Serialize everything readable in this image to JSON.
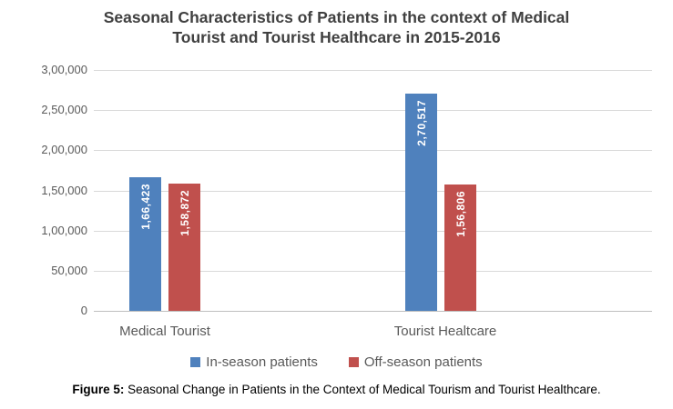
{
  "title": {
    "line1": "Seasonal Characteristics of Patients in the context of Medical",
    "line2": "Tourist and Tourist Healthcare in 2015-2016"
  },
  "chart_data": {
    "type": "bar",
    "title": "Seasonal Characteristics of Patients in the context of Medical Tourist and Tourist Healthcare in 2015-2016",
    "categories": [
      "Medical Tourist",
      "Tourist Healtcare"
    ],
    "series": [
      {
        "name": "In-season patients",
        "color": "#4F81BD",
        "values": [
          166423,
          270517
        ],
        "labels": [
          "1,66,423",
          "2,70,517"
        ]
      },
      {
        "name": "Off-season patients",
        "color": "#C0504D",
        "values": [
          158872,
          156806
        ],
        "labels": [
          "1,58,872",
          "1,56,806"
        ]
      }
    ],
    "ylim": [
      0,
      300000
    ],
    "ytick_step": 50000,
    "ytick_labels": [
      "3,00,000",
      "2,50,000",
      "2,00,000",
      "1,50,000",
      "1,00,000",
      "50,000",
      "0"
    ],
    "grid": true,
    "legend_position": "bottom",
    "data_label_color": "#FFFFFF",
    "data_label_rotation": "vertical"
  },
  "caption": {
    "prefix": "Figure 5:",
    "text": " Seasonal Change in Patients in the Context of Medical Tourism and Tourist Healthcare."
  }
}
